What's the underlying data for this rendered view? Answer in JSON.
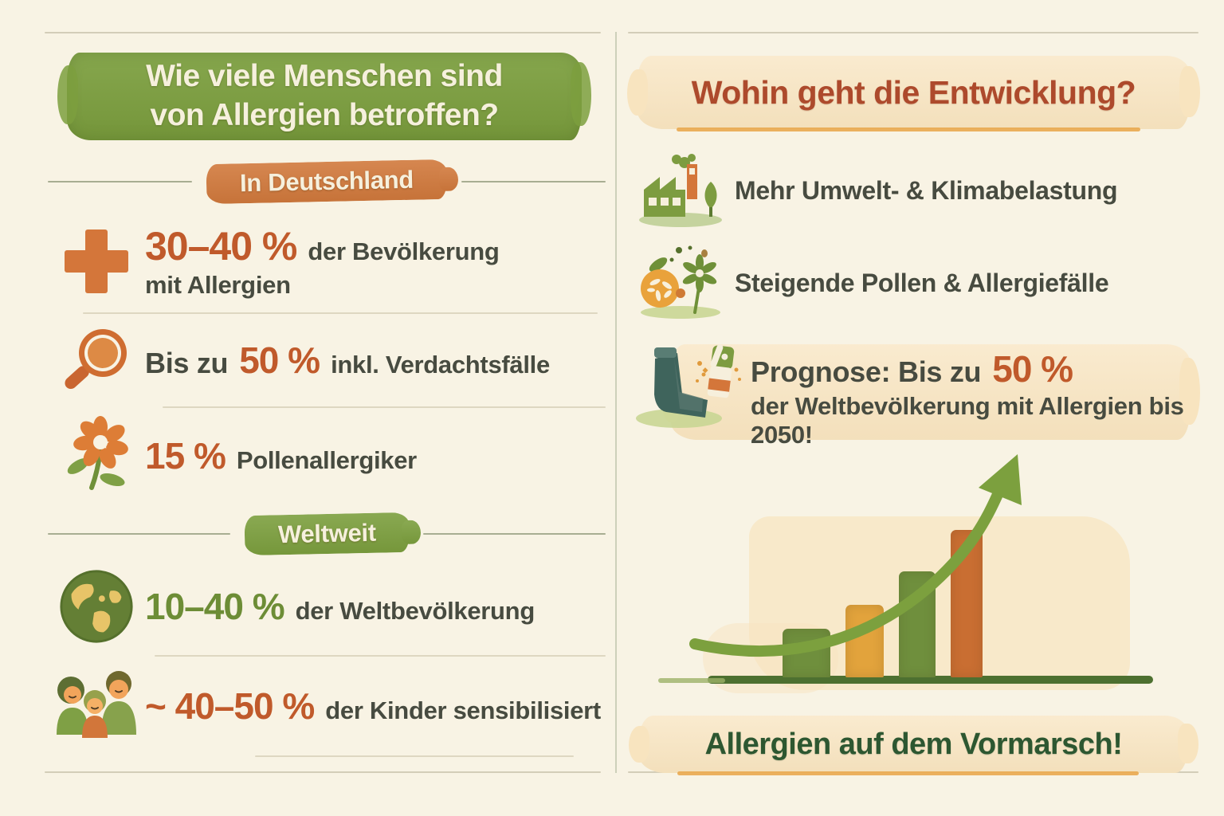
{
  "left": {
    "title_line1": "Wie viele Menschen sind",
    "title_line2": "von Allergien betroffen?",
    "section_de": "In Deutschland",
    "stats_de": [
      {
        "icon": "cross-icon",
        "value": "30–40 %",
        "suffix": "der Bevölkerung",
        "line2": "mit Allergien"
      },
      {
        "icon": "magnifier-icon",
        "prefix": "Bis zu",
        "value": "50 %",
        "suffix": "inkl. Verdachtsfälle"
      },
      {
        "icon": "flower-icon",
        "value": "15 %",
        "suffix": "Pollenallergiker"
      }
    ],
    "section_world": "Weltweit",
    "stats_world": [
      {
        "icon": "globe-icon",
        "value": "10–40 %",
        "suffix": "der Weltbevölkerung"
      },
      {
        "icon": "family-icon",
        "value": "~ 40–50 %",
        "suffix": "der Kinder sensibilisiert"
      }
    ]
  },
  "right": {
    "title": "Wohin geht die Entwicklung?",
    "trends": [
      {
        "icon": "factory-icon",
        "text": "Mehr Umwelt- & Klimabelastung"
      },
      {
        "icon": "pollen-icon",
        "text": "Steigende Pollen & Allergiefälle"
      }
    ],
    "prognosis": {
      "icon": "inhaler-icon",
      "prefix": "Prognose: Bis zu",
      "value": "50 %",
      "line2": "der Weltbevölkerung mit Allergien bis 2050!"
    },
    "footer": "Allergien auf dem Vormarsch!"
  },
  "chart_data": {
    "type": "bar",
    "categories": [
      "",
      "",
      "",
      ""
    ],
    "values": [
      33,
      49,
      72,
      100
    ],
    "unit": "relative bar height, tallest = 100 (no axis labels shown)",
    "colors": [
      "#6f8f3d",
      "#e2a33c",
      "#6f8f3d",
      "#c96e32"
    ],
    "title": "",
    "xlabel": "",
    "ylabel": "",
    "grid": false,
    "annotations": [
      "rising curved arrow pointing up-right"
    ],
    "arrow_color": "#7ca03e"
  },
  "colors": {
    "background": "#f8f3e4",
    "accent_green": "#7c9f3e",
    "accent_orange": "#d1793c",
    "number_orange": "#c05a2b",
    "number_green": "#6d8d36",
    "text_dark": "#474b40",
    "title_red": "#ad4a2c",
    "footer_green": "#2d5731",
    "band_cream": "#f8e4bf",
    "underline_orange": "#e9a94f",
    "inhaler_teal": "#3f645c"
  }
}
